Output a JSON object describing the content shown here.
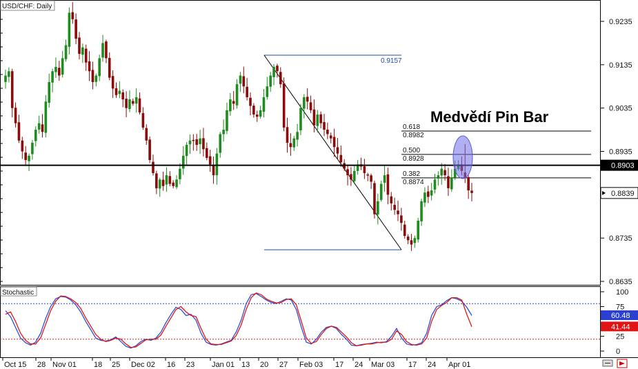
{
  "window": {
    "title": "USD/CHF: Daily",
    "indicator_title": "Stochastic"
  },
  "annotation": {
    "text": "Medvědí Pin Bar"
  },
  "colors": {
    "up": "#1e8c1e",
    "down": "#8b0a0a",
    "fib": "#1f4fa6",
    "blue_line": "#2b4fd6",
    "red_line": "#e01414",
    "dotted_blue": "#2b3fd0",
    "dotted_red": "#e02020"
  },
  "chart_data": [
    {
      "type": "candlestick",
      "title": "USD/CHF: Daily",
      "y_ticks": [
        "0.9235",
        "0.9135",
        "0.9035",
        "0.8935",
        "0.8835",
        "0.8735",
        "0.8635"
      ],
      "ylim": [
        0.8635,
        0.9235
      ],
      "x_ticks": [
        "Oct 15",
        "28",
        "Nov 01",
        "18",
        "25",
        "Dec 02",
        "16",
        "23",
        "Jan 01",
        "13",
        "20",
        "27",
        "Feb 03",
        "17",
        "24",
        "Mar 03",
        "17",
        "24",
        "Apr 01"
      ],
      "horizontal_line": {
        "value": 0.8903,
        "label": "0.8903"
      },
      "current_price": {
        "value": 0.8839,
        "label": "0.8839"
      },
      "fibonacci": {
        "high": 0.9157,
        "low": 0.8708,
        "levels": [
          {
            "ratio": "0.618",
            "price": "0.8982"
          },
          {
            "ratio": "0.500",
            "price": "0.8928"
          },
          {
            "ratio": "0.382",
            "price": "0.8874"
          }
        ],
        "high_label": "0.9157"
      },
      "closes": [
        0.911,
        0.912,
        0.9035,
        0.9,
        0.896,
        0.8935,
        0.8915,
        0.8925,
        0.8955,
        0.8985,
        0.9,
        0.898,
        0.905,
        0.9095,
        0.912,
        0.913,
        0.911,
        0.915,
        0.918,
        0.9255,
        0.924,
        0.9195,
        0.916,
        0.9175,
        0.914,
        0.912,
        0.9095,
        0.911,
        0.915,
        0.9185,
        0.915,
        0.9105,
        0.908,
        0.9065,
        0.9075,
        0.9055,
        0.9035,
        0.9055,
        0.9045,
        0.906,
        0.9025,
        0.899,
        0.896,
        0.8915,
        0.8885,
        0.885,
        0.887,
        0.8855,
        0.888,
        0.886,
        0.8855,
        0.887,
        0.8895,
        0.8925,
        0.895,
        0.896,
        0.896,
        0.895,
        0.8965,
        0.894,
        0.892,
        0.8905,
        0.888,
        0.893,
        0.8975,
        0.8985,
        0.903,
        0.9055,
        0.9045,
        0.909,
        0.911,
        0.9085,
        0.906,
        0.904,
        0.902,
        0.9015,
        0.903,
        0.906,
        0.9085,
        0.911,
        0.913,
        0.912,
        0.909,
        0.899,
        0.8955,
        0.8945,
        0.8965,
        0.898,
        0.9035,
        0.906,
        0.905,
        0.903,
        0.8995,
        0.902,
        0.9,
        0.8985,
        0.8975,
        0.8965,
        0.8945,
        0.893,
        0.891,
        0.8895,
        0.888,
        0.887,
        0.889,
        0.8905,
        0.89,
        0.8885,
        0.888,
        0.8865,
        0.879,
        0.882,
        0.886,
        0.888,
        0.8835,
        0.8815,
        0.88,
        0.879,
        0.877,
        0.874,
        0.873,
        0.872,
        0.8735,
        0.8775,
        0.882,
        0.884,
        0.883,
        0.8845,
        0.887,
        0.888,
        0.8895,
        0.888,
        0.885,
        0.8875,
        0.8895,
        0.8905,
        0.889,
        0.8875,
        0.8845,
        0.8839
      ]
    },
    {
      "type": "line",
      "title": "Stochastic",
      "y_ticks": [
        "100",
        "75",
        "25",
        "0"
      ],
      "ylim": [
        0,
        100
      ],
      "levels": [
        80,
        20
      ],
      "series": [
        {
          "values": [
            68,
            58,
            40,
            22,
            14,
            10,
            15,
            30,
            55,
            75,
            88,
            92,
            91,
            86,
            78,
            66,
            50,
            36,
            22,
            18,
            17,
            19,
            24,
            16,
            8,
            5,
            9,
            16,
            20,
            18,
            22,
            32,
            48,
            62,
            74,
            70,
            60,
            62,
            52,
            30,
            15,
            11,
            10,
            12,
            15,
            18,
            32,
            52,
            80,
            95,
            97,
            92,
            86,
            82,
            80,
            84,
            88,
            86,
            70,
            40,
            15,
            12,
            20,
            32,
            40,
            42,
            38,
            28,
            20,
            10,
            9,
            11,
            12,
            13,
            15,
            14,
            16,
            25,
            38,
            22,
            12,
            10,
            11,
            14,
            30,
            60,
            75,
            78,
            85,
            90,
            88,
            84,
            74,
            60
          ],
          "last_value": 60.48,
          "label": "60.48"
        },
        {
          "values": [
            62,
            66,
            50,
            30,
            18,
            12,
            12,
            22,
            45,
            68,
            84,
            93,
            92,
            88,
            82,
            72,
            56,
            42,
            28,
            20,
            16,
            18,
            22,
            20,
            12,
            6,
            7,
            13,
            19,
            20,
            20,
            27,
            42,
            56,
            70,
            75,
            66,
            60,
            58,
            38,
            20,
            12,
            11,
            11,
            14,
            17,
            26,
            44,
            70,
            90,
            98,
            95,
            88,
            84,
            81,
            82,
            87,
            88,
            78,
            50,
            22,
            13,
            16,
            28,
            38,
            42,
            40,
            32,
            24,
            14,
            9,
            10,
            12,
            12,
            14,
            15,
            15,
            20,
            34,
            28,
            16,
            11,
            10,
            12,
            22,
            50,
            70,
            77,
            82,
            90,
            90,
            86,
            62,
            41
          ],
          "last_value": 41.44,
          "label": "41.44"
        }
      ]
    }
  ]
}
